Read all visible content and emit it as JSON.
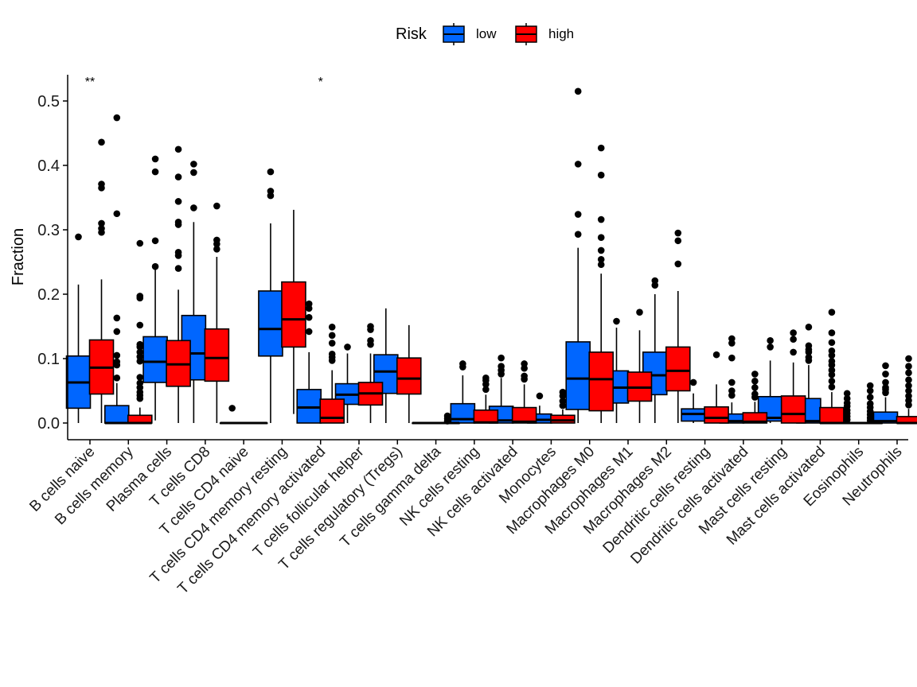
{
  "chart_data": {
    "type": "boxplot",
    "title": "",
    "xlabel": "",
    "ylabel": "Fraction",
    "ylim": [
      -0.03,
      0.54
    ],
    "yticks": [
      0.0,
      0.1,
      0.2,
      0.3,
      0.4,
      0.5
    ],
    "ytick_labels": [
      "0.0",
      "0.1",
      "0.2",
      "0.3",
      "0.4",
      "0.5"
    ],
    "grid": false,
    "legend": {
      "title": "Risk",
      "placement": "top",
      "entries": [
        {
          "name": "low",
          "color": "#0066FF"
        },
        {
          "name": "high",
          "color": "#FF0000"
        }
      ]
    },
    "categories": [
      "B cells naive",
      "B cells memory",
      "Plasma cells",
      "T cells CD8",
      "T cells CD4 naive",
      "T cells CD4 memory resting",
      "T cells CD4 memory activated",
      "T cells follicular helper",
      "T cells regulatory (Tregs)",
      "T cells gamma delta",
      "NK cells resting",
      "NK cells activated",
      "Monocytes",
      "Macrophages M0",
      "Macrophages M1",
      "Macrophages M2",
      "Dendritic cells resting",
      "Dendritic cells activated",
      "Mast cells resting",
      "Mast cells activated",
      "Eosinophils",
      "Neutrophils"
    ],
    "significance": [
      "**",
      "",
      "",
      "",
      "",
      "",
      "*",
      "",
      "",
      "",
      "",
      "",
      "",
      "",
      "",
      "",
      "",
      "",
      "",
      "",
      "",
      ""
    ],
    "series": [
      {
        "name": "low",
        "color": "#0066FF",
        "boxes": [
          {
            "min": 0.0,
            "q1": 0.023,
            "median": 0.063,
            "q3": 0.104,
            "max": 0.215,
            "outliers": [
              0.289
            ]
          },
          {
            "min": 0.0,
            "q1": 0.0,
            "median": 0.0,
            "q3": 0.027,
            "max": 0.062,
            "outliers": [
              0.07,
              0.09,
              0.095,
              0.105,
              0.142,
              0.163,
              0.325,
              0.474
            ]
          },
          {
            "min": 0.004,
            "q1": 0.063,
            "median": 0.095,
            "q3": 0.134,
            "max": 0.24,
            "outliers": [
              0.243,
              0.283,
              0.39,
              0.41
            ]
          },
          {
            "min": 0.0,
            "q1": 0.067,
            "median": 0.108,
            "q3": 0.167,
            "max": 0.312,
            "outliers": [
              0.334,
              0.389,
              0.402
            ]
          },
          {
            "min": 0.0,
            "q1": 0.0,
            "median": 0.0,
            "q3": 0.0,
            "max": 0.0,
            "outliers": [
              0.023
            ]
          },
          {
            "min": 0.0,
            "q1": 0.104,
            "median": 0.146,
            "q3": 0.205,
            "max": 0.31,
            "outliers": [
              0.353,
              0.36,
              0.39
            ]
          },
          {
            "min": 0.0,
            "q1": 0.0,
            "median": 0.024,
            "q3": 0.052,
            "max": 0.11,
            "outliers": [
              0.142,
              0.164,
              0.178,
              0.185
            ]
          },
          {
            "min": 0.0,
            "q1": 0.029,
            "median": 0.044,
            "q3": 0.061,
            "max": 0.108,
            "outliers": [
              0.118
            ]
          },
          {
            "min": 0.0,
            "q1": 0.046,
            "median": 0.08,
            "q3": 0.106,
            "max": 0.178,
            "outliers": []
          },
          {
            "min": 0.0,
            "q1": 0.0,
            "median": 0.0,
            "q3": 0.0,
            "max": 0.0,
            "outliers": []
          },
          {
            "min": 0.0,
            "q1": 0.0,
            "median": 0.006,
            "q3": 0.03,
            "max": 0.074,
            "outliers": [
              0.087,
              0.092
            ]
          },
          {
            "min": 0.0,
            "q1": 0.0,
            "median": 0.004,
            "q3": 0.026,
            "max": 0.07,
            "outliers": [
              0.076,
              0.082,
              0.088,
              0.101
            ]
          },
          {
            "min": 0.0,
            "q1": 0.0,
            "median": 0.005,
            "q3": 0.014,
            "max": 0.027,
            "outliers": [
              0.042
            ]
          },
          {
            "min": 0.0,
            "q1": 0.021,
            "median": 0.069,
            "q3": 0.126,
            "max": 0.272,
            "outliers": [
              0.293,
              0.324,
              0.402,
              0.515
            ]
          },
          {
            "min": 0.0,
            "q1": 0.031,
            "median": 0.055,
            "q3": 0.081,
            "max": 0.148,
            "outliers": [
              0.158
            ]
          },
          {
            "min": 0.0,
            "q1": 0.044,
            "median": 0.074,
            "q3": 0.11,
            "max": 0.2,
            "outliers": [
              0.214,
              0.221
            ]
          },
          {
            "min": 0.0,
            "q1": 0.003,
            "median": 0.014,
            "q3": 0.022,
            "max": 0.046,
            "outliers": [
              0.063
            ]
          },
          {
            "min": 0.0,
            "q1": 0.0,
            "median": 0.003,
            "q3": 0.014,
            "max": 0.032,
            "outliers": [
              0.043,
              0.05,
              0.063,
              0.101,
              0.124,
              0.131
            ]
          },
          {
            "min": 0.0,
            "q1": 0.003,
            "median": 0.008,
            "q3": 0.041,
            "max": 0.097,
            "outliers": [
              0.118,
              0.128
            ]
          },
          {
            "min": 0.0,
            "q1": 0.0,
            "median": 0.003,
            "q3": 0.038,
            "max": 0.09,
            "outliers": [
              0.097,
              0.102,
              0.11,
              0.114,
              0.12,
              0.149
            ]
          },
          {
            "min": 0.0,
            "q1": 0.0,
            "median": 0.0,
            "q3": 0.0,
            "max": 0.0,
            "outliers": [
              0.005,
              0.01,
              0.015,
              0.02,
              0.026,
              0.031,
              0.038,
              0.046
            ]
          },
          {
            "min": 0.0,
            "q1": 0.0,
            "median": 0.003,
            "q3": 0.017,
            "max": 0.04,
            "outliers": [
              0.047,
              0.052,
              0.055,
              0.063,
              0.076,
              0.089
            ]
          }
        ]
      },
      {
        "name": "high",
        "color": "#FF0000",
        "boxes": [
          {
            "min": 0.0,
            "q1": 0.045,
            "median": 0.086,
            "q3": 0.129,
            "max": 0.223,
            "outliers": [
              0.296,
              0.302,
              0.31,
              0.365,
              0.371,
              0.436
            ]
          },
          {
            "min": 0.0,
            "q1": 0.0,
            "median": 0.0,
            "q3": 0.012,
            "max": 0.024,
            "outliers": [
              0.038,
              0.043,
              0.048,
              0.055,
              0.062,
              0.071,
              0.096,
              0.103,
              0.11,
              0.118,
              0.122,
              0.152,
              0.194,
              0.197,
              0.279
            ]
          },
          {
            "min": 0.0,
            "q1": 0.057,
            "median": 0.091,
            "q3": 0.128,
            "max": 0.207,
            "outliers": [
              0.24,
              0.26,
              0.265,
              0.308,
              0.312,
              0.344,
              0.382,
              0.425
            ]
          },
          {
            "min": 0.0,
            "q1": 0.065,
            "median": 0.101,
            "q3": 0.146,
            "max": 0.258,
            "outliers": [
              0.27,
              0.278,
              0.284,
              0.337
            ]
          },
          {
            "min": 0.0,
            "q1": 0.0,
            "median": 0.0,
            "q3": 0.0,
            "max": 0.0,
            "outliers": []
          },
          {
            "min": 0.014,
            "q1": 0.118,
            "median": 0.161,
            "q3": 0.219,
            "max": 0.331,
            "outliers": []
          },
          {
            "min": 0.0,
            "q1": 0.0,
            "median": 0.008,
            "q3": 0.037,
            "max": 0.082,
            "outliers": [
              0.097,
              0.102,
              0.107,
              0.124,
              0.136,
              0.149
            ]
          },
          {
            "min": 0.0,
            "q1": 0.028,
            "median": 0.046,
            "q3": 0.063,
            "max": 0.108,
            "outliers": [
              0.122,
              0.128,
              0.145,
              0.15
            ]
          },
          {
            "min": 0.0,
            "q1": 0.045,
            "median": 0.069,
            "q3": 0.101,
            "max": 0.152,
            "outliers": []
          },
          {
            "min": 0.0,
            "q1": 0.0,
            "median": 0.0,
            "q3": 0.0,
            "max": 0.0,
            "outliers": [
              0.003,
              0.007,
              0.011
            ]
          },
          {
            "min": 0.0,
            "q1": 0.0,
            "median": 0.001,
            "q3": 0.02,
            "max": 0.044,
            "outliers": [
              0.052,
              0.06,
              0.066,
              0.07
            ]
          },
          {
            "min": 0.0,
            "q1": 0.0,
            "median": 0.002,
            "q3": 0.024,
            "max": 0.06,
            "outliers": [
              0.068,
              0.073,
              0.085,
              0.092
            ]
          },
          {
            "min": 0.0,
            "q1": 0.0,
            "median": 0.004,
            "q3": 0.012,
            "max": 0.021,
            "outliers": [
              0.027,
              0.034,
              0.042,
              0.048
            ]
          },
          {
            "min": 0.0,
            "q1": 0.019,
            "median": 0.068,
            "q3": 0.11,
            "max": 0.232,
            "outliers": [
              0.246,
              0.254,
              0.268,
              0.288,
              0.316,
              0.385,
              0.427
            ]
          },
          {
            "min": 0.0,
            "q1": 0.034,
            "median": 0.055,
            "q3": 0.079,
            "max": 0.144,
            "outliers": [
              0.172
            ]
          },
          {
            "min": 0.0,
            "q1": 0.05,
            "median": 0.081,
            "q3": 0.118,
            "max": 0.205,
            "outliers": [
              0.247,
              0.283,
              0.295
            ]
          },
          {
            "min": 0.0,
            "q1": 0.0,
            "median": 0.008,
            "q3": 0.025,
            "max": 0.06,
            "outliers": [
              0.106
            ]
          },
          {
            "min": 0.0,
            "q1": 0.0,
            "median": 0.002,
            "q3": 0.016,
            "max": 0.033,
            "outliers": [
              0.04,
              0.045,
              0.055,
              0.065,
              0.076
            ]
          },
          {
            "min": 0.0,
            "q1": 0.0,
            "median": 0.014,
            "q3": 0.042,
            "max": 0.094,
            "outliers": [
              0.11,
              0.13,
              0.14
            ]
          },
          {
            "min": 0.0,
            "q1": 0.0,
            "median": 0.0,
            "q3": 0.024,
            "max": 0.048,
            "outliers": [
              0.056,
              0.065,
              0.075,
              0.082,
              0.09,
              0.096,
              0.105,
              0.112,
              0.125,
              0.14,
              0.172
            ]
          },
          {
            "min": 0.0,
            "q1": 0.0,
            "median": 0.0,
            "q3": 0.0,
            "max": 0.0,
            "outliers": [
              0.004,
              0.008,
              0.013,
              0.018,
              0.024,
              0.03,
              0.04,
              0.05,
              0.058
            ]
          },
          {
            "min": 0.0,
            "q1": 0.0,
            "median": 0.0,
            "q3": 0.01,
            "max": 0.022,
            "outliers": [
              0.028,
              0.035,
              0.042,
              0.05,
              0.058,
              0.067,
              0.078,
              0.088,
              0.1
            ]
          }
        ]
      }
    ]
  }
}
